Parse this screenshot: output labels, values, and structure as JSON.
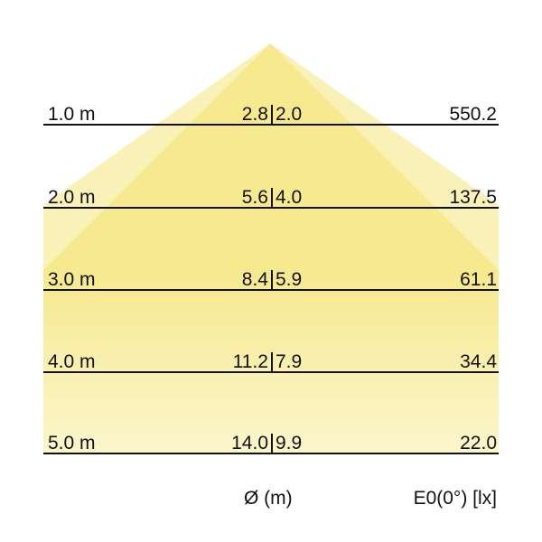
{
  "colors": {
    "cone_outer": "#f7eeaa",
    "cone_inner": "#f3e36e",
    "fade": "#fbf6d8",
    "line": "#111111"
  },
  "rows": [
    {
      "distance": "1.0 m",
      "diameter_c0": "2.8",
      "diameter_c90": "2.0",
      "illuminance": "550.2"
    },
    {
      "distance": "2.0 m",
      "diameter_c0": "5.6",
      "diameter_c90": "4.0",
      "illuminance": "137.5"
    },
    {
      "distance": "3.0 m",
      "diameter_c0": "8.4",
      "diameter_c90": "5.9",
      "illuminance": "61.1"
    },
    {
      "distance": "4.0 m",
      "diameter_c0": "11.2",
      "diameter_c90": "7.9",
      "illuminance": "34.4"
    },
    {
      "distance": "5.0 m",
      "diameter_c0": "14.0",
      "diameter_c90": "9.9",
      "illuminance": "22.0"
    }
  ],
  "footer": {
    "diameter_label": "Ø (m)",
    "illuminance_label": "E0(0°) [lx]"
  }
}
